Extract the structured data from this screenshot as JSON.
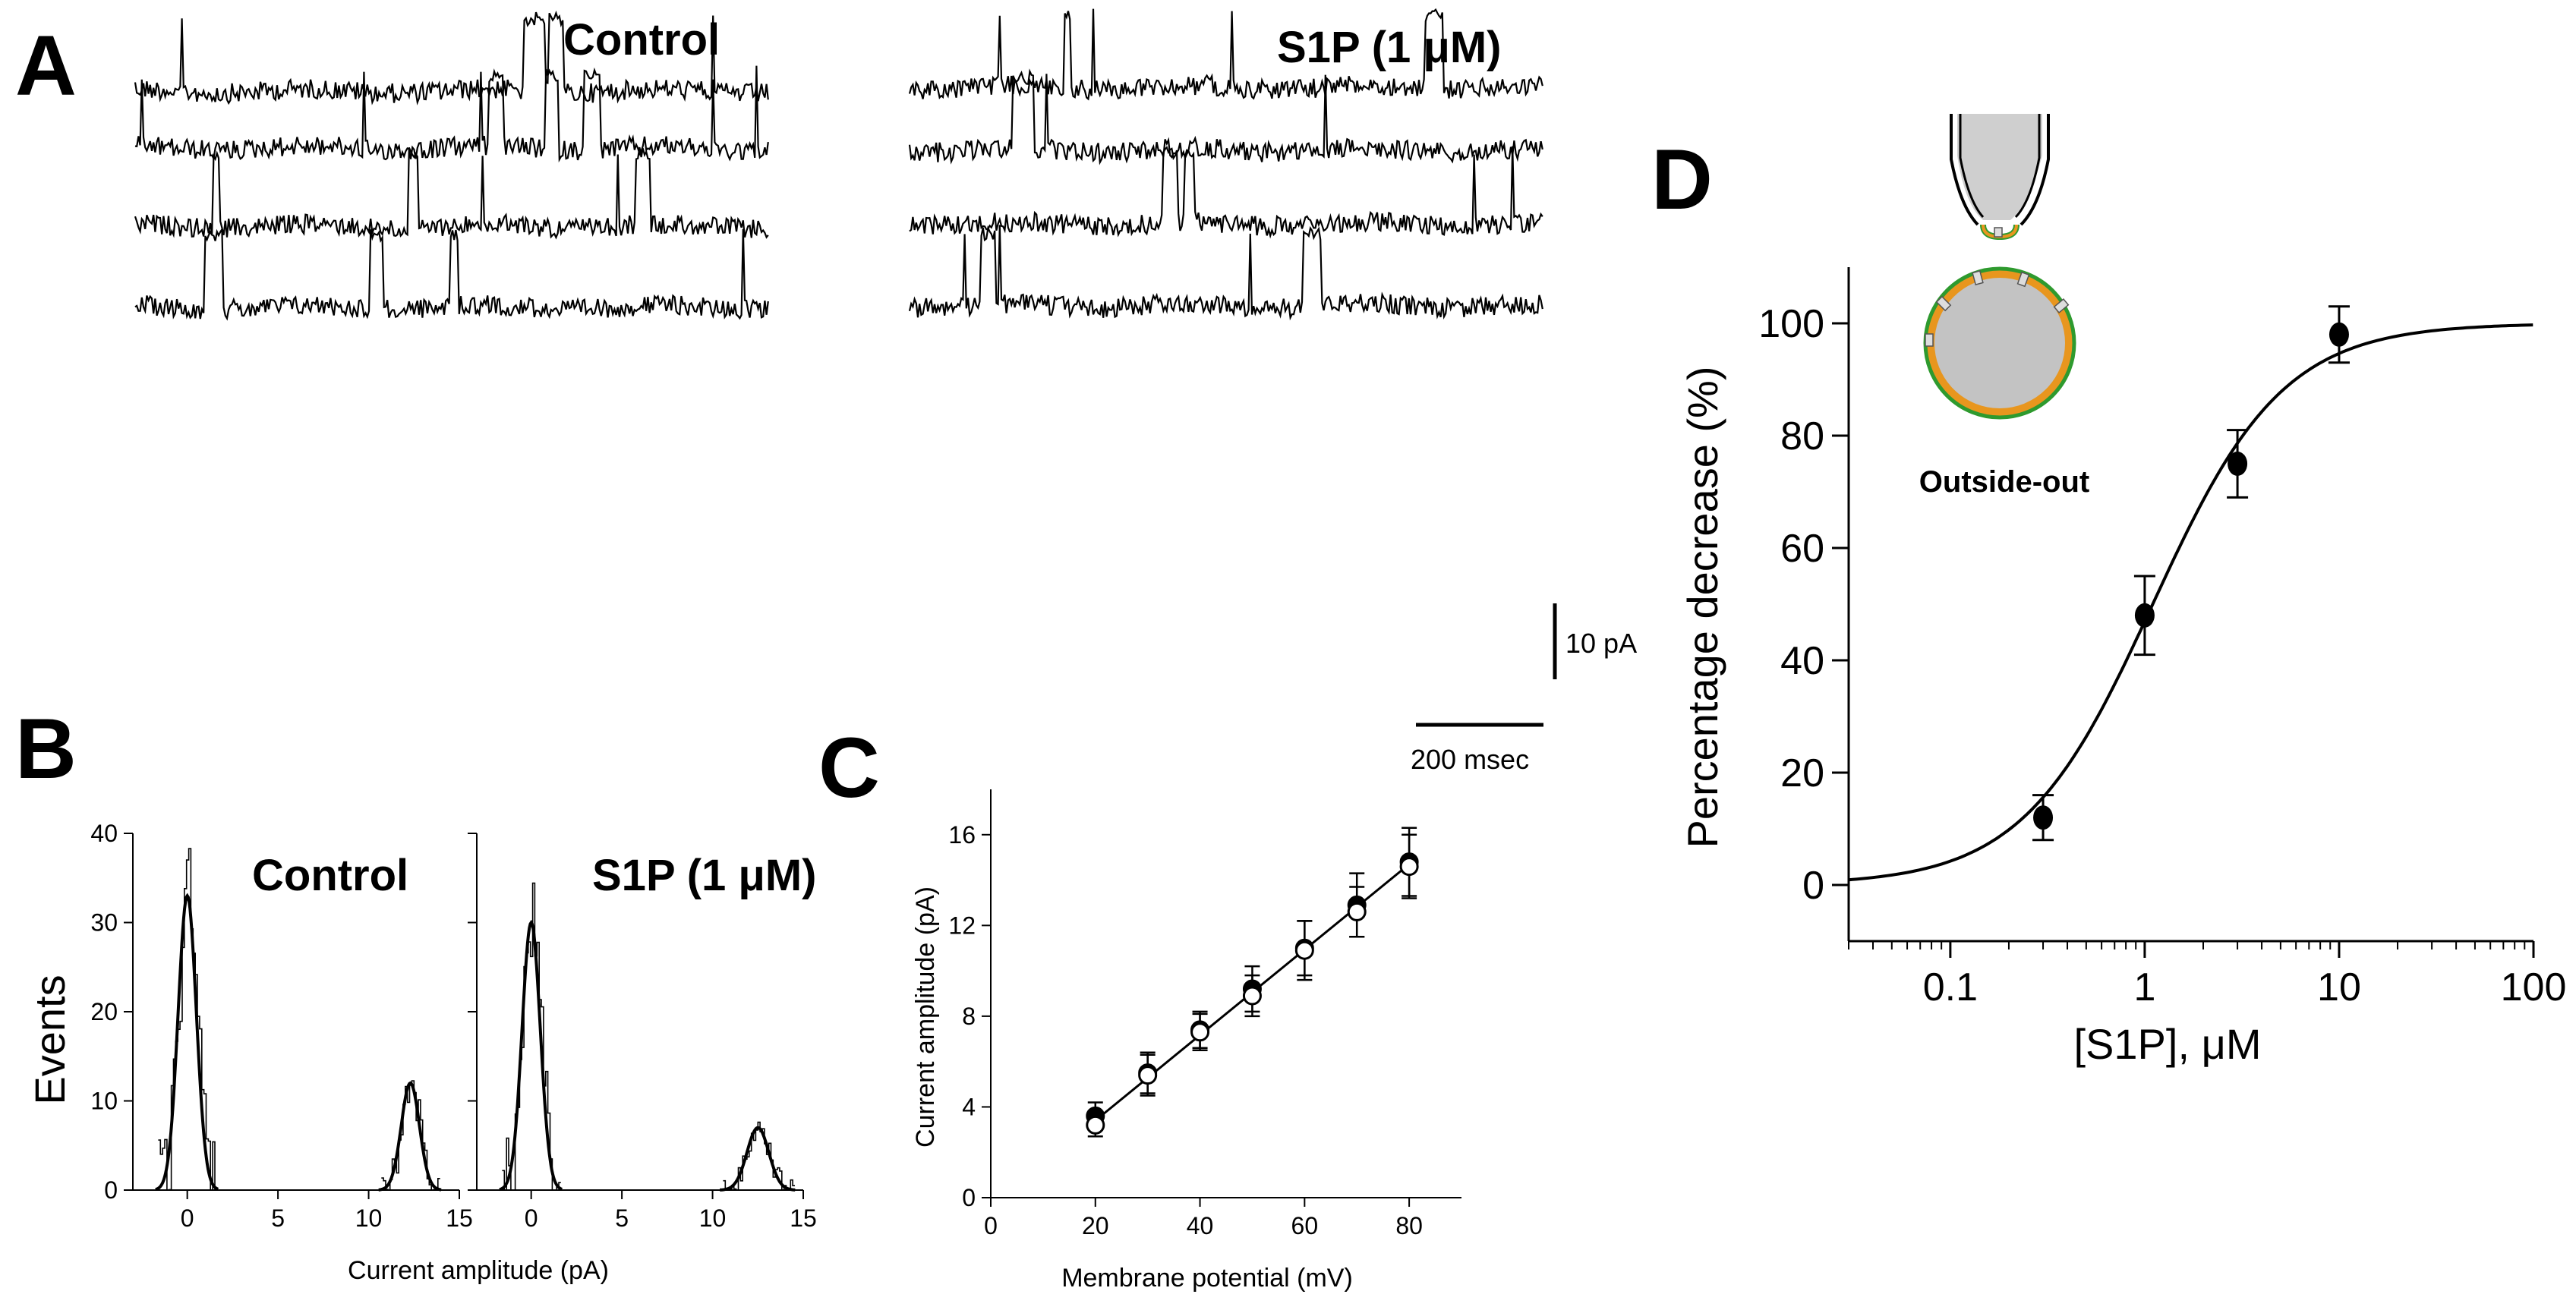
{
  "figure": {
    "panel_letters": [
      "A",
      "B",
      "C",
      "D"
    ],
    "panelA": {
      "control_label": "Control",
      "s1p_label": "S1P (1 μM)",
      "scale_current_label": "10 pA",
      "scale_time_label": "200 msec"
    },
    "panelB": {
      "control_label": "Control",
      "s1p_label": "S1P (1 μM)"
    },
    "panelD": {
      "inset_label": "Outside-out"
    }
  },
  "chart_data": [
    {
      "panel": "A",
      "type": "line",
      "description_of_series": "single-channel current traces, 4 sweeps per condition",
      "series": [
        {
          "name": "Control",
          "sweeps": 4
        },
        {
          "name": "S1P (1 μM)",
          "sweeps": 4
        }
      ],
      "scale_bars": {
        "current": "10 pA",
        "time": "200 msec"
      }
    },
    {
      "panel": "B",
      "type": "bar",
      "subplots": [
        {
          "title": "Control",
          "xlabel": "Current amplitude (pA)",
          "ylabel": "Events",
          "xlim": [
            -3,
            15
          ],
          "ylim": [
            0,
            40
          ],
          "xticks": [
            0,
            5,
            10,
            15
          ],
          "yticks": [
            0,
            10,
            20,
            30,
            40
          ],
          "peaks": [
            {
              "center": 0,
              "height": 33,
              "sd": 0.5
            },
            {
              "center": 12.3,
              "height": 12,
              "sd": 0.5
            }
          ]
        },
        {
          "title": "S1P (1 μM)",
          "xlabel": "Current amplitude (pA)",
          "ylabel": "Events",
          "xlim": [
            -3,
            15
          ],
          "ylim": [
            0,
            40
          ],
          "xticks": [
            0,
            5,
            10,
            15
          ],
          "yticks": [
            0,
            10,
            20,
            30,
            40
          ],
          "peaks": [
            {
              "center": 0,
              "height": 30,
              "sd": 0.5
            },
            {
              "center": 12.5,
              "height": 7,
              "sd": 0.6
            }
          ]
        }
      ]
    },
    {
      "panel": "C",
      "type": "scatter",
      "xlabel": "Membrane potential (mV)",
      "ylabel": "Current amplitude (pA)",
      "xlim": [
        0,
        90
      ],
      "ylim": [
        0,
        18
      ],
      "xticks": [
        0,
        20,
        40,
        60,
        80
      ],
      "yticks": [
        0,
        4,
        8,
        12,
        16
      ],
      "series": [
        {
          "marker": "filled",
          "x": [
            20,
            30,
            40,
            50,
            60,
            70,
            80
          ],
          "y": [
            3.6,
            5.5,
            7.4,
            9.2,
            11.0,
            12.9,
            14.8
          ],
          "err": [
            0.6,
            0.9,
            0.8,
            1.0,
            1.2,
            1.4,
            1.5
          ]
        },
        {
          "marker": "open",
          "x": [
            20,
            30,
            40,
            50,
            60,
            70,
            80
          ],
          "y": [
            3.2,
            5.4,
            7.3,
            8.9,
            10.9,
            12.6,
            14.6
          ],
          "err": [
            0.5,
            0.9,
            0.8,
            0.9,
            1.3,
            1.1,
            1.4
          ]
        }
      ],
      "fit_line": {
        "x": [
          20,
          80
        ],
        "y": [
          3.4,
          14.7
        ]
      }
    },
    {
      "panel": "D",
      "type": "scatter",
      "xlabel": "[S1P], μM",
      "ylabel": "Percentage decrease (%)",
      "xscale": "log",
      "xlim": [
        0.03,
        100
      ],
      "ylim": [
        -10,
        110
      ],
      "xticks": [
        0.1,
        1,
        10,
        100
      ],
      "xtick_labels": [
        "0.1",
        "1",
        "10",
        "100"
      ],
      "yticks": [
        0,
        20,
        40,
        60,
        80,
        100
      ],
      "points": {
        "x": [
          0.3,
          1,
          3,
          10
        ],
        "y": [
          12,
          48,
          75,
          98
        ],
        "err": [
          4,
          7,
          6,
          5
        ]
      },
      "fit": {
        "ec50": 1.1,
        "hill": 1.3,
        "max": 100
      }
    }
  ]
}
